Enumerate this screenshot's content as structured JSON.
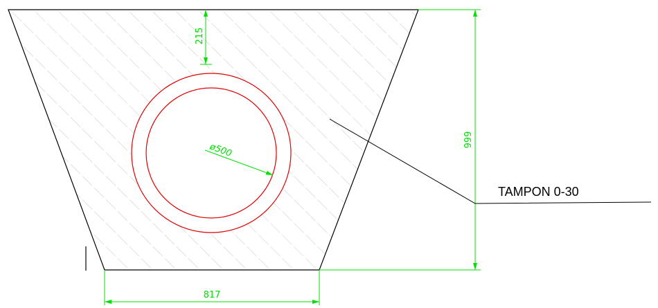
{
  "dimensions": {
    "top_offset": "215",
    "height": "999",
    "bottom_width": "817",
    "pipe_diameter": "ø500"
  },
  "callout": {
    "label": "TAMPON 0-30"
  },
  "colors": {
    "outline": "#000000",
    "hatch": "#b8b8b8",
    "dimension": "#00e000",
    "pipe": "#e00000"
  }
}
